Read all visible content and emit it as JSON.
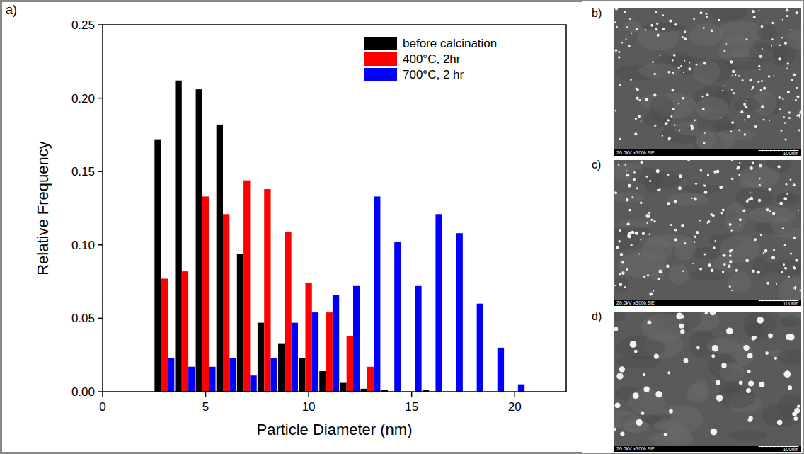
{
  "chart_data": {
    "type": "bar",
    "label": "a)",
    "x_label": "Particle Diameter (nm)",
    "y_label": "Relative Frequency",
    "x": [
      3,
      4,
      5,
      6,
      7,
      8,
      9,
      10,
      11,
      12,
      13,
      14,
      15,
      16,
      17,
      18,
      19,
      20
    ],
    "series": [
      {
        "name": "before calcination",
        "color": "#000000",
        "values": [
          0.172,
          0.212,
          0.206,
          0.182,
          0.094,
          0.047,
          0.033,
          0.023,
          0.014,
          0.006,
          0.002,
          0.001,
          0,
          0.001,
          0,
          0,
          0,
          0
        ]
      },
      {
        "name": "400°C, 2hr",
        "color": "#ff0000",
        "values": [
          0.077,
          0.082,
          0.133,
          0.121,
          0.144,
          0.138,
          0.109,
          0.074,
          0.054,
          0.038,
          0.017,
          0,
          0,
          0,
          0,
          0,
          0,
          0
        ]
      },
      {
        "name": "700°C, 2 hr",
        "color": "#0000ff",
        "values": [
          0.023,
          0.017,
          0.017,
          0.023,
          0.011,
          0.023,
          0.047,
          0.054,
          0.066,
          0.072,
          0.133,
          0.102,
          0.072,
          0.121,
          0.108,
          0.06,
          0.03,
          0.005
        ]
      }
    ],
    "xlim": [
      0,
      22.5
    ],
    "xticks": [
      0,
      5,
      10,
      15,
      20
    ],
    "ylim": [
      0,
      0.25
    ],
    "yticks": [
      {
        "value": 0,
        "label": "0.00"
      },
      {
        "value": 0.05,
        "label": "0.05"
      },
      {
        "value": 0.1,
        "label": "0.10"
      },
      {
        "value": 0.15,
        "label": "0.15"
      },
      {
        "value": 0.2,
        "label": "0.20"
      },
      {
        "value": 0.25,
        "label": "0.25"
      }
    ],
    "legend": "upper right",
    "grid": false
  },
  "images": [
    {
      "label": "b)",
      "caption": "20.0kV x300k SE",
      "scale_label": "100nm"
    },
    {
      "label": "c)",
      "caption": "20.0kV x300k SE",
      "scale_label": "100nm"
    },
    {
      "label": "d)",
      "caption": "20.0kV x300k SE",
      "scale_label": "100nm"
    }
  ]
}
